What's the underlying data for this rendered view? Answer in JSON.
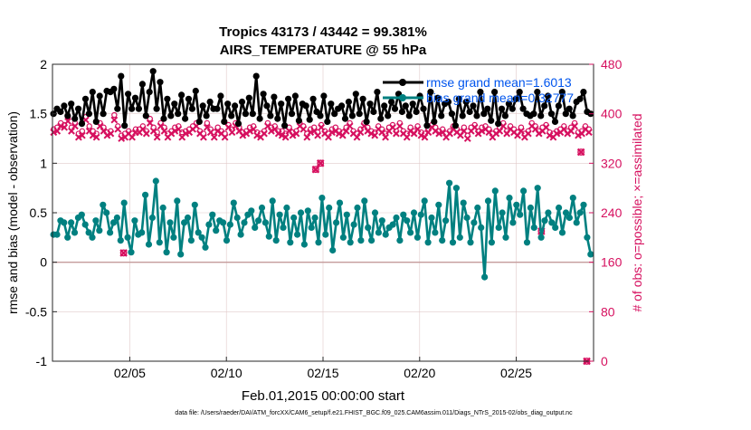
{
  "chart_data": {
    "type": "line",
    "title_line1": "Tropics 43173 / 43442 = 99.381%",
    "title_line2": "AIRS_TEMPERATURE @ 55 hPa",
    "xlabel": "Feb.01,2015 00:00:00 start",
    "ylabel": "rmse and bias (model - observation)",
    "ylabel_right": "# of obs: o=possible; ×=assimilated",
    "footer": "data file: /Users/raeder/DAI/ATM_forcXX/CAM6_setup/f.e21.FHIST_BGC.f09_025.CAM6assim.011/Diags_NTrS_2015-02/obs_diag_output.nc",
    "x_ticks": [
      "02/05",
      "02/10",
      "02/15",
      "02/20",
      "02/25"
    ],
    "x_tick_days": [
      5,
      10,
      15,
      20,
      25
    ],
    "xlim_days": [
      1,
      29
    ],
    "ylim": [
      -1,
      2
    ],
    "y_ticks": [
      "2",
      "1.5",
      "1",
      "0.5",
      "0",
      "-0.5",
      "-1"
    ],
    "y_tick_values": [
      2,
      1.5,
      1,
      0.5,
      0,
      -0.5,
      -1
    ],
    "ylim_right": [
      0,
      480
    ],
    "y_ticks_right": [
      "480",
      "400",
      "320",
      "240",
      "160",
      "80",
      "0"
    ],
    "y_tick_values_right": [
      480,
      400,
      320,
      240,
      160,
      80,
      0
    ],
    "legend_rmse": "rmse grand mean=1.6013",
    "legend_bias": "bias grand mean=0.32777",
    "series": [
      {
        "name": "rmse",
        "color": "#000000",
        "values": [
          1.5,
          1.55,
          1.52,
          1.58,
          1.48,
          1.6,
          1.45,
          1.55,
          1.4,
          1.65,
          1.5,
          1.72,
          1.42,
          1.68,
          1.5,
          1.73,
          1.72,
          1.75,
          1.55,
          1.88,
          1.38,
          1.7,
          1.55,
          1.66,
          1.55,
          1.8,
          1.48,
          1.72,
          1.93,
          1.55,
          1.82,
          1.45,
          1.65,
          1.48,
          1.6,
          1.5,
          1.69,
          1.45,
          1.65,
          1.55,
          1.73,
          1.42,
          1.58,
          1.48,
          1.62,
          1.55,
          1.55,
          1.68,
          1.42,
          1.6,
          1.48,
          1.58,
          1.4,
          1.62,
          1.5,
          1.66,
          1.5,
          1.88,
          1.45,
          1.7,
          1.58,
          1.48,
          1.67,
          1.45,
          1.6,
          1.38,
          1.65,
          1.5,
          1.68,
          1.43,
          1.6,
          1.58,
          1.44,
          1.65,
          1.52,
          1.48,
          1.68,
          1.42,
          1.6,
          1.5,
          1.55,
          1.58,
          1.45,
          1.62,
          1.48,
          1.7,
          1.5,
          1.65,
          1.42,
          1.6,
          1.52,
          1.72,
          1.45,
          1.58,
          1.48,
          1.62,
          1.55,
          1.7,
          1.52,
          1.58,
          1.48,
          1.6,
          1.52,
          1.68,
          1.55,
          1.38,
          1.72,
          1.42,
          1.66,
          1.48,
          1.6,
          1.62,
          1.5,
          1.38,
          1.65,
          1.48,
          1.62,
          1.52,
          1.58,
          1.48,
          1.72,
          1.5,
          1.55,
          1.43,
          1.72,
          1.4,
          1.55,
          1.48,
          1.6,
          1.55,
          1.65,
          1.72,
          1.55,
          1.5,
          1.48,
          1.5,
          1.72,
          1.48,
          1.58,
          1.68,
          1.5,
          1.42,
          1.58,
          1.72,
          1.5,
          1.55,
          1.48,
          1.62,
          1.65,
          1.72,
          1.52,
          1.5
        ]
      },
      {
        "name": "bias",
        "color": "#008080",
        "values": [
          0.28,
          0.28,
          0.42,
          0.4,
          0.25,
          0.4,
          0.3,
          0.45,
          0.48,
          0.38,
          0.3,
          0.25,
          0.42,
          0.32,
          0.58,
          0.5,
          0.3,
          0.4,
          0.45,
          0.22,
          0.6,
          0.25,
          0.1,
          0.42,
          0.28,
          0.3,
          0.68,
          0.18,
          0.45,
          0.82,
          0.2,
          0.55,
          0.1,
          0.4,
          0.25,
          0.62,
          0.08,
          0.4,
          0.45,
          0.22,
          0.58,
          0.3,
          0.25,
          0.15,
          0.38,
          0.48,
          0.32,
          0.42,
          0.4,
          0.22,
          0.38,
          0.6,
          0.45,
          0.28,
          0.4,
          0.48,
          0.52,
          0.35,
          0.42,
          0.55,
          0.4,
          0.26,
          0.62,
          0.22,
          0.48,
          0.35,
          0.55,
          0.2,
          0.45,
          0.28,
          0.5,
          0.18,
          0.52,
          0.35,
          0.45,
          0.2,
          0.65,
          0.28,
          0.55,
          0.12,
          0.4,
          0.6,
          0.25,
          0.48,
          0.2,
          0.38,
          0.55,
          0.22,
          0.62,
          0.35,
          0.22,
          0.5,
          0.3,
          0.42,
          0.28,
          0.35,
          0.38,
          0.45,
          0.22,
          0.48,
          0.42,
          0.3,
          0.5,
          0.25,
          0.48,
          0.62,
          0.2,
          0.45,
          0.3,
          0.58,
          0.22,
          0.42,
          0.8,
          0.2,
          0.75,
          0.25,
          0.6,
          0.45,
          0.2,
          0.4,
          0.55,
          0.35,
          -0.15,
          0.62,
          0.2,
          0.72,
          0.35,
          0.5,
          0.25,
          0.65,
          0.4,
          0.58,
          0.48,
          0.72,
          0.2,
          0.55,
          0.35,
          0.75,
          0.25,
          0.42,
          0.5,
          0.4,
          0.35,
          0.55,
          0.3,
          0.5,
          0.45,
          0.65,
          0.4,
          0.5,
          0.58,
          0.25,
          0.08
        ]
      }
    ],
    "obs_possible_color": "#d6105f",
    "obs_possible": [
      375,
      378,
      385,
      382,
      395,
      378,
      385,
      368,
      372,
      395,
      380,
      372,
      368,
      385,
      378,
      370,
      372,
      398,
      380,
      365,
      368,
      372,
      368,
      375,
      375,
      380,
      372,
      392,
      378,
      370,
      385,
      378,
      368,
      372,
      378,
      380,
      370,
      372,
      375,
      380,
      385,
      372,
      368,
      385,
      375,
      370,
      378,
      372,
      368,
      382,
      375,
      385,
      378,
      370,
      372,
      378,
      380,
      370,
      368,
      372,
      385,
      378,
      380,
      372,
      372,
      368,
      378,
      370,
      372,
      385,
      380,
      368,
      375,
      378,
      370,
      382,
      372,
      368,
      375,
      378,
      372,
      370,
      378,
      385,
      372,
      368,
      375,
      385,
      378,
      372,
      370,
      380,
      375,
      368,
      378,
      382,
      372,
      385,
      372,
      368,
      378,
      372,
      380,
      370,
      368,
      375,
      382,
      378,
      372,
      375,
      368,
      372,
      380,
      375,
      370,
      378,
      365,
      378,
      382,
      372,
      378,
      380,
      375,
      368,
      372,
      378,
      385,
      372,
      380,
      375,
      370,
      378,
      368,
      372,
      385,
      380,
      372,
      378,
      382,
      370,
      368,
      372,
      375,
      380,
      372,
      378,
      385,
      370,
      372,
      380,
      375
    ],
    "obs_assimilated": [
      370,
      372,
      380,
      378,
      388,
      372,
      380,
      362,
      365,
      390,
      372,
      365,
      362,
      380,
      372,
      365,
      368,
      390,
      375,
      360,
      362,
      368,
      362,
      370,
      370,
      375,
      368,
      385,
      372,
      362,
      380,
      372,
      362,
      368,
      372,
      375,
      362,
      368,
      370,
      375,
      380,
      368,
      362,
      378,
      370,
      362,
      372,
      368,
      362,
      378,
      370,
      380,
      372,
      365,
      368,
      372,
      375,
      365,
      362,
      368,
      380,
      372,
      375,
      368,
      365,
      362,
      372,
      365,
      368,
      380,
      375,
      362,
      370,
      372,
      365,
      378,
      368,
      362,
      370,
      372,
      368,
      365,
      372,
      380,
      368,
      362,
      370,
      380,
      372,
      368,
      365,
      375,
      370,
      362,
      372,
      378,
      368,
      380,
      368,
      362,
      372,
      368,
      375,
      365,
      362,
      370,
      378,
      372,
      368,
      370,
      362,
      368,
      375,
      370,
      365,
      372,
      360,
      372,
      378,
      368,
      372,
      375,
      370,
      362,
      368,
      372,
      380,
      368,
      375,
      370,
      365,
      372,
      362,
      368,
      380,
      375,
      368,
      372,
      378,
      365,
      362,
      368,
      370,
      375,
      368,
      372,
      380,
      365,
      368,
      375,
      370
    ],
    "obs_highlights": [
      {
        "day": 4.68,
        "count": 175
      },
      {
        "day": 14.62,
        "count": 310
      },
      {
        "day": 14.87,
        "count": 320
      },
      {
        "day": 26.3,
        "count": 210
      },
      {
        "day": 28.35,
        "count": 338
      },
      {
        "day": 28.65,
        "count": 0
      }
    ]
  }
}
